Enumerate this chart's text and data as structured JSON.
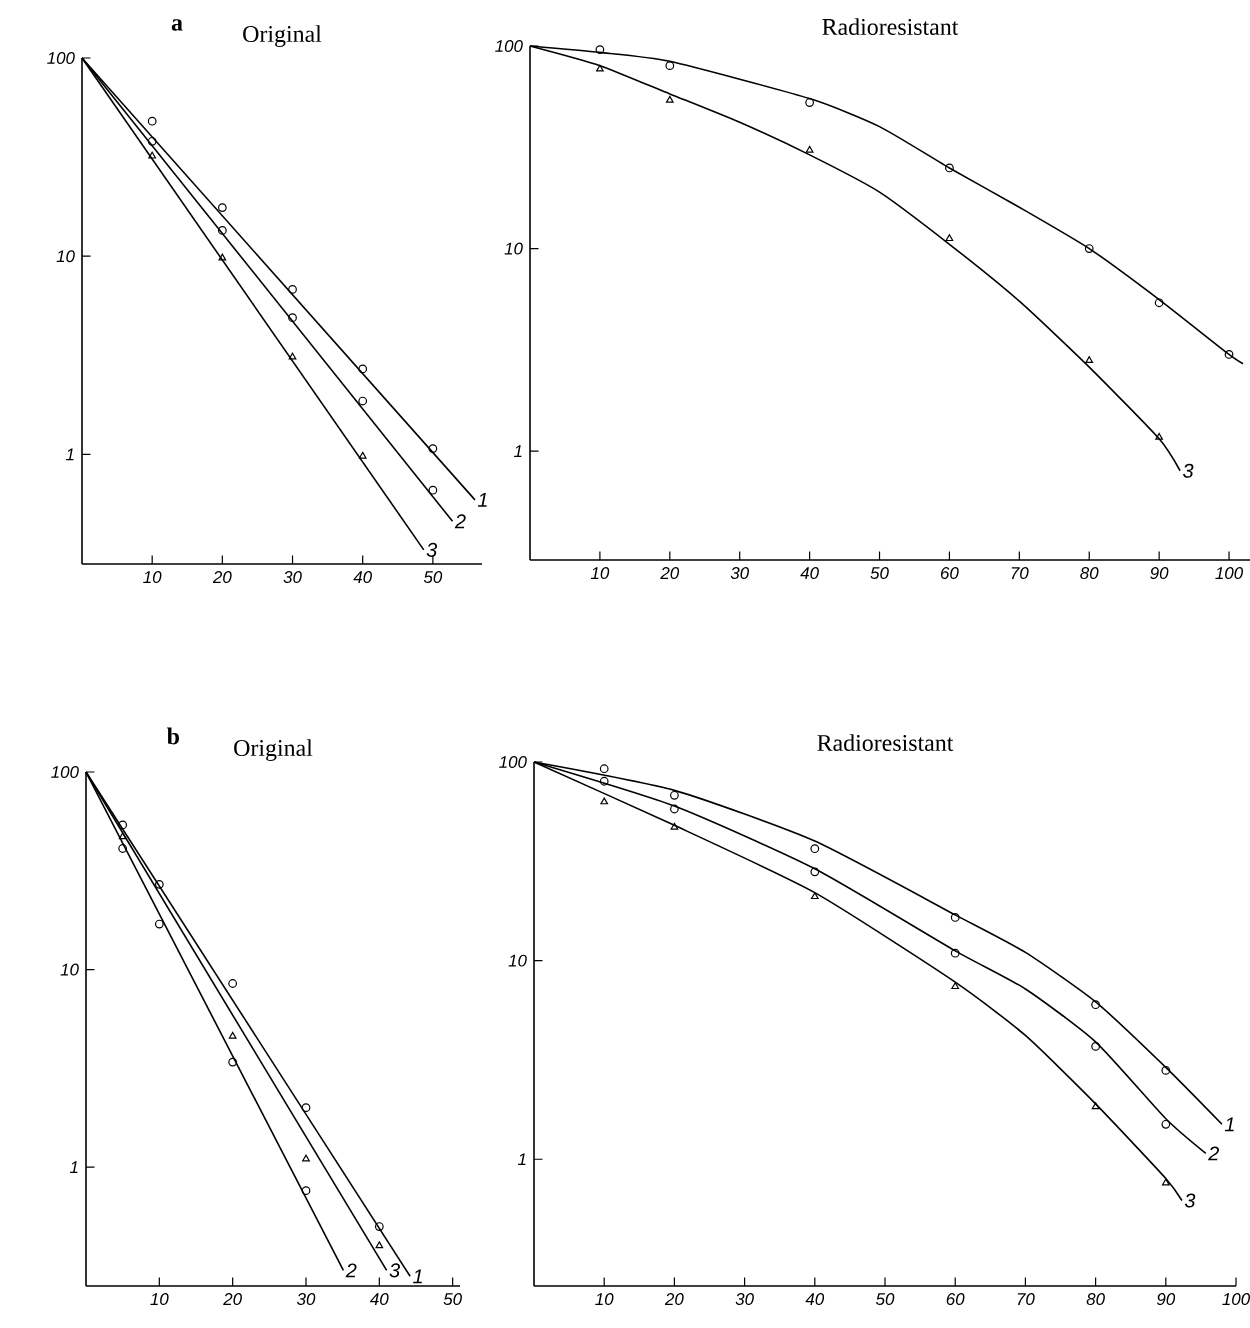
{
  "chart_data": [
    {
      "type": "line",
      "title": "Original",
      "annotations": [
        "a"
      ],
      "log": "y",
      "xlim": [
        0,
        57
      ],
      "ylim": [
        0.28,
        100
      ],
      "xticks": [
        10,
        20,
        30,
        40,
        50
      ],
      "yticks": [
        1,
        10,
        100
      ],
      "series": [
        {
          "type": "scatter",
          "marker": "circle",
          "color": "#000000",
          "x": [
            10,
            20,
            30,
            40,
            50
          ],
          "values": [
            48,
            17.6,
            6.8,
            2.7,
            1.07
          ]
        },
        {
          "type": "scatter",
          "marker": "circle",
          "color": "#000000",
          "x": [
            10,
            20,
            30,
            40,
            50
          ],
          "values": [
            38,
            13.5,
            4.9,
            1.86,
            0.66
          ]
        },
        {
          "type": "scatter",
          "marker": "triangle",
          "color": "#000000",
          "x": [
            10,
            20,
            30,
            40
          ],
          "values": [
            32,
            9.8,
            3.1,
            0.98
          ]
        },
        {
          "name": "1",
          "color": "#000000",
          "x": [
            0,
            56
          ],
          "values": [
            100,
            0.59
          ]
        },
        {
          "name": "2",
          "color": "#000000",
          "x": [
            0,
            52.8
          ],
          "values": [
            100,
            0.46
          ]
        },
        {
          "name": "3",
          "color": "#000000",
          "x": [
            0,
            48.7
          ],
          "values": [
            100,
            0.33
          ]
        }
      ]
    },
    {
      "type": "line",
      "title": "Radioresistant",
      "log": "y",
      "xlim": [
        0,
        103
      ],
      "ylim": [
        0.29,
        100
      ],
      "xticks": [
        10,
        20,
        30,
        40,
        50,
        60,
        70,
        80,
        90,
        100
      ],
      "yticks": [
        1,
        10,
        100
      ],
      "series": [
        {
          "type": "scatter",
          "marker": "circle",
          "color": "#000000",
          "x": [
            10,
            20,
            40,
            60,
            80,
            90,
            100
          ],
          "values": [
            96,
            80,
            52.6,
            25,
            10,
            5.4,
            3.0
          ]
        },
        {
          "type": "scatter",
          "marker": "triangle",
          "color": "#000000",
          "x": [
            10,
            20,
            40,
            60,
            80,
            90
          ],
          "values": [
            77,
            54,
            30.6,
            11.2,
            2.8,
            1.17
          ]
        },
        {
          "color": "#000000",
          "x": [
            0,
            10,
            20,
            40,
            50,
            60,
            70,
            80,
            90,
            100,
            102
          ],
          "values": [
            100,
            93,
            84,
            55,
            40,
            25,
            16,
            10,
            5.6,
            3.0,
            2.7
          ]
        },
        {
          "name": "3",
          "color": "#000000",
          "x": [
            0,
            10,
            20,
            30,
            40,
            50,
            60,
            70,
            80,
            90,
            93
          ],
          "values": [
            100,
            80,
            58,
            42,
            29,
            19,
            10.5,
            5.5,
            2.6,
            1.15,
            0.8
          ]
        }
      ]
    },
    {
      "type": "line",
      "title": "Original",
      "annotations": [
        "b"
      ],
      "log": "y",
      "xlim": [
        0,
        51
      ],
      "ylim": [
        0.25,
        100
      ],
      "xticks": [
        10,
        20,
        30,
        40,
        50
      ],
      "yticks": [
        1,
        10,
        100
      ],
      "series": [
        {
          "type": "scatter",
          "marker": "circle",
          "color": "#000000",
          "x": [
            5,
            10,
            20,
            30,
            40
          ],
          "values": [
            54,
            27,
            8.5,
            2.0,
            0.5
          ]
        },
        {
          "type": "scatter",
          "marker": "circle",
          "color": "#000000",
          "x": [
            5,
            10,
            20,
            30
          ],
          "values": [
            41,
            17,
            3.4,
            0.76
          ]
        },
        {
          "type": "scatter",
          "marker": "triangle",
          "color": "#000000",
          "x": [
            5,
            20,
            30,
            40
          ],
          "values": [
            47,
            4.6,
            1.1,
            0.4
          ]
        },
        {
          "name": "1",
          "color": "#000000",
          "x": [
            0,
            44.2
          ],
          "values": [
            100,
            0.28
          ]
        },
        {
          "name": "2",
          "color": "#000000",
          "x": [
            0,
            35.1
          ],
          "values": [
            100,
            0.3
          ]
        },
        {
          "name": "3",
          "color": "#000000",
          "x": [
            0,
            41
          ],
          "values": [
            100,
            0.3
          ]
        }
      ]
    },
    {
      "type": "line",
      "title": "Radioresistant",
      "log": "y",
      "xlim": [
        0,
        100
      ],
      "ylim": [
        0.23,
        100
      ],
      "xticks": [
        10,
        20,
        30,
        40,
        50,
        60,
        70,
        80,
        90,
        100
      ],
      "yticks": [
        1,
        10,
        100
      ],
      "series": [
        {
          "type": "scatter",
          "marker": "circle",
          "color": "#000000",
          "x": [
            10,
            20,
            40,
            60,
            80,
            90
          ],
          "values": [
            92.5,
            68,
            36.6,
            16.5,
            6.0,
            2.8
          ]
        },
        {
          "type": "scatter",
          "marker": "circle",
          "color": "#000000",
          "x": [
            10,
            20,
            40,
            60,
            80,
            90
          ],
          "values": [
            80,
            58,
            28,
            10.9,
            3.7,
            1.5
          ]
        },
        {
          "type": "scatter",
          "marker": "triangle",
          "color": "#000000",
          "x": [
            10,
            20,
            40,
            60,
            80,
            90
          ],
          "values": [
            63,
            47,
            21,
            7.4,
            1.84,
            0.76
          ]
        },
        {
          "name": "1",
          "color": "#000000",
          "x": [
            0,
            20,
            40,
            60,
            70,
            80,
            90,
            98
          ],
          "values": [
            100,
            72,
            40,
            17,
            11,
            6.2,
            2.9,
            1.5
          ]
        },
        {
          "name": "2",
          "color": "#000000",
          "x": [
            0,
            20,
            40,
            60,
            70,
            80,
            90,
            95.7
          ],
          "values": [
            100,
            60,
            29,
            11.2,
            7.2,
            3.9,
            1.6,
            1.07
          ]
        },
        {
          "name": "3",
          "color": "#000000",
          "x": [
            0,
            20,
            40,
            60,
            70,
            80,
            90,
            92.3
          ],
          "values": [
            100,
            48,
            22,
            7.8,
            4.2,
            1.9,
            0.8,
            0.62
          ]
        }
      ]
    }
  ]
}
